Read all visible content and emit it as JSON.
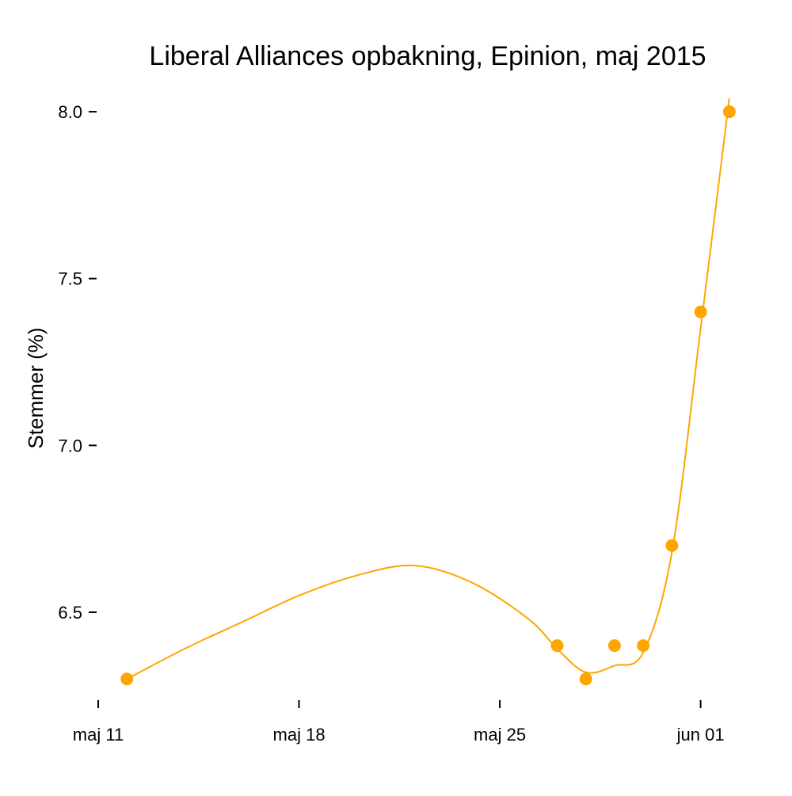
{
  "chart_data": {
    "type": "scatter",
    "title": "Liberal Alliances opbakning, Epinion, maj 2015",
    "xlabel": "",
    "ylabel": "Stemmer (%)",
    "x_ticks": [
      {
        "date": "2015-05-11",
        "label": "maj 11"
      },
      {
        "date": "2015-05-18",
        "label": "maj 18"
      },
      {
        "date": "2015-05-25",
        "label": "maj 25"
      },
      {
        "date": "2015-06-01",
        "label": "jun 01"
      }
    ],
    "y_ticks": [
      6.5,
      7.0,
      7.5,
      8.0
    ],
    "y_tick_labels": [
      "6.5",
      "7.0",
      "7.5",
      "8.0"
    ],
    "xlim": [
      "2015-05-11",
      "2015-06-02"
    ],
    "ylim": [
      6.3,
      8.0
    ],
    "grid": false,
    "color": "#FFA500",
    "series": [
      {
        "name": "Epinion",
        "x": [
          "2015-05-12",
          "2015-05-27",
          "2015-05-28",
          "2015-05-29",
          "2015-05-30",
          "2015-05-31",
          "2015-06-01",
          "2015-06-02"
        ],
        "values": [
          6.3,
          6.4,
          6.3,
          6.4,
          6.4,
          6.7,
          7.4,
          8.0
        ]
      }
    ],
    "smooth": {
      "x": [
        "2015-05-12",
        "2015-05-14",
        "2015-05-16",
        "2015-05-18",
        "2015-05-20",
        "2015-05-22",
        "2015-05-24",
        "2015-05-26",
        "2015-05-27",
        "2015-05-28",
        "2015-05-29",
        "2015-05-30",
        "2015-05-31",
        "2015-06-01",
        "2015-06-02"
      ],
      "values": [
        6.3,
        6.39,
        6.47,
        6.55,
        6.61,
        6.64,
        6.59,
        6.48,
        6.39,
        6.32,
        6.34,
        6.38,
        6.68,
        7.35,
        8.04
      ]
    }
  }
}
